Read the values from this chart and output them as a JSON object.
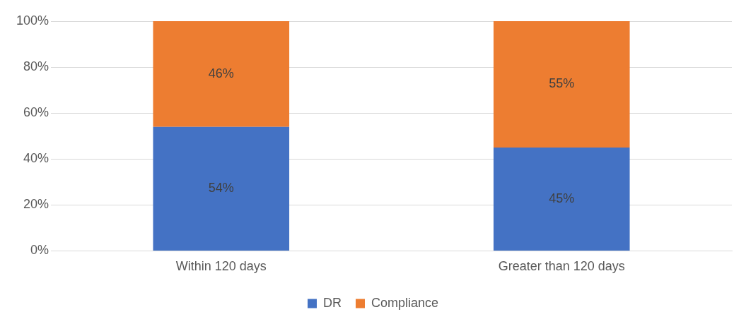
{
  "chart_data": {
    "type": "bar",
    "stacked": true,
    "categories": [
      "Within 120 days",
      "Greater than 120 days"
    ],
    "series": [
      {
        "name": "DR",
        "color": "#4472c4",
        "values": [
          54,
          45
        ],
        "value_labels": [
          "54%",
          "45%"
        ]
      },
      {
        "name": "Compliance",
        "color": "#ed7d31",
        "values": [
          46,
          55
        ],
        "value_labels": [
          "46%",
          "55%"
        ]
      }
    ],
    "ylim": [
      0,
      100
    ],
    "yticks": [
      {
        "value": 0,
        "label": "0%"
      },
      {
        "value": 20,
        "label": "20%"
      },
      {
        "value": 40,
        "label": "40%"
      },
      {
        "value": 60,
        "label": "60%"
      },
      {
        "value": 80,
        "label": "80%"
      },
      {
        "value": 100,
        "label": "100%"
      }
    ],
    "grid": "y",
    "legend": "bottom"
  }
}
